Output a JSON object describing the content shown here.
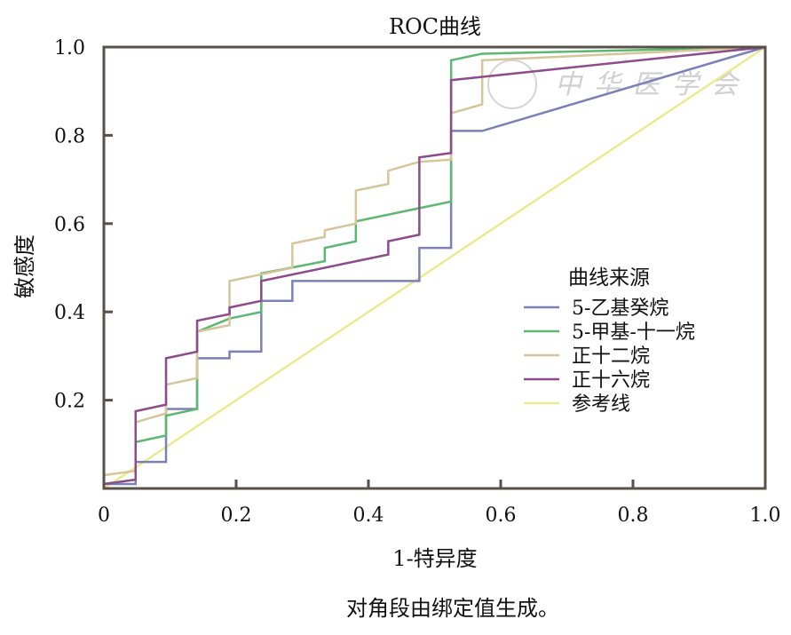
{
  "chart_data": {
    "type": "line",
    "title": "ROC曲线",
    "xlabel": "1-特异度",
    "ylabel": "敏感度",
    "xlim": [
      0,
      1
    ],
    "ylim": [
      0,
      1
    ],
    "x_ticks": [
      "0",
      "0.2",
      "0.4",
      "0.6",
      "0.8",
      "1.0"
    ],
    "x_tick_values": [
      0,
      0.2,
      0.4,
      0.6,
      0.8,
      1.0
    ],
    "y_ticks": [
      "0.2",
      "0.4",
      "0.6",
      "0.8",
      "1.0"
    ],
    "y_tick_values": [
      0.2,
      0.4,
      0.6,
      0.8,
      1.0
    ],
    "grid": false,
    "legend_title": "曲线来源",
    "legend_position": "right",
    "footnote": "对角段由绑定值生成。",
    "watermark": "中华医学会",
    "series": [
      {
        "name": "5-乙基癸烷",
        "color": "#7b80b8",
        "points": [
          [
            0,
            0.01
          ],
          [
            0.048,
            0.01
          ],
          [
            0.048,
            0.06
          ],
          [
            0.094,
            0.06
          ],
          [
            0.094,
            0.18
          ],
          [
            0.141,
            0.18
          ],
          [
            0.141,
            0.295
          ],
          [
            0.19,
            0.295
          ],
          [
            0.19,
            0.31
          ],
          [
            0.238,
            0.31
          ],
          [
            0.238,
            0.425
          ],
          [
            0.285,
            0.425
          ],
          [
            0.285,
            0.47
          ],
          [
            0.477,
            0.47
          ],
          [
            0.477,
            0.545
          ],
          [
            0.525,
            0.545
          ],
          [
            0.525,
            0.81
          ],
          [
            0.572,
            0.81
          ],
          [
            1,
            1
          ]
        ]
      },
      {
        "name": "5-甲基-十一烷",
        "color": "#5cb870",
        "points": [
          [
            0,
            0.01
          ],
          [
            0.048,
            0.02
          ],
          [
            0.048,
            0.105
          ],
          [
            0.094,
            0.12
          ],
          [
            0.094,
            0.165
          ],
          [
            0.141,
            0.18
          ],
          [
            0.141,
            0.355
          ],
          [
            0.19,
            0.385
          ],
          [
            0.238,
            0.4
          ],
          [
            0.238,
            0.487
          ],
          [
            0.334,
            0.515
          ],
          [
            0.334,
            0.545
          ],
          [
            0.381,
            0.56
          ],
          [
            0.381,
            0.605
          ],
          [
            0.477,
            0.635
          ],
          [
            0.525,
            0.65
          ],
          [
            0.525,
            0.97
          ],
          [
            0.572,
            0.985
          ],
          [
            1,
            1
          ]
        ]
      },
      {
        "name": "正十二烷",
        "color": "#d6c59a",
        "points": [
          [
            0,
            0.03
          ],
          [
            0.048,
            0.04
          ],
          [
            0.048,
            0.15
          ],
          [
            0.094,
            0.17
          ],
          [
            0.094,
            0.235
          ],
          [
            0.141,
            0.25
          ],
          [
            0.141,
            0.355
          ],
          [
            0.19,
            0.37
          ],
          [
            0.19,
            0.47
          ],
          [
            0.238,
            0.485
          ],
          [
            0.285,
            0.5
          ],
          [
            0.285,
            0.555
          ],
          [
            0.334,
            0.57
          ],
          [
            0.334,
            0.585
          ],
          [
            0.381,
            0.6
          ],
          [
            0.381,
            0.675
          ],
          [
            0.43,
            0.69
          ],
          [
            0.43,
            0.72
          ],
          [
            0.477,
            0.74
          ],
          [
            0.525,
            0.745
          ],
          [
            0.525,
            0.85
          ],
          [
            0.572,
            0.87
          ],
          [
            0.572,
            0.97
          ],
          [
            1,
            1
          ]
        ]
      },
      {
        "name": "正十六烷",
        "color": "#8e4a8a",
        "points": [
          [
            0,
            0.01
          ],
          [
            0.048,
            0.02
          ],
          [
            0.048,
            0.175
          ],
          [
            0.094,
            0.19
          ],
          [
            0.094,
            0.295
          ],
          [
            0.141,
            0.31
          ],
          [
            0.141,
            0.38
          ],
          [
            0.19,
            0.395
          ],
          [
            0.19,
            0.41
          ],
          [
            0.238,
            0.425
          ],
          [
            0.238,
            0.47
          ],
          [
            0.43,
            0.53
          ],
          [
            0.43,
            0.56
          ],
          [
            0.477,
            0.575
          ],
          [
            0.477,
            0.75
          ],
          [
            0.525,
            0.76
          ],
          [
            0.525,
            0.925
          ],
          [
            1,
            1
          ]
        ]
      },
      {
        "name": "参考线",
        "color": "#ece98e",
        "points": [
          [
            0,
            0
          ],
          [
            1,
            1
          ]
        ]
      }
    ]
  }
}
